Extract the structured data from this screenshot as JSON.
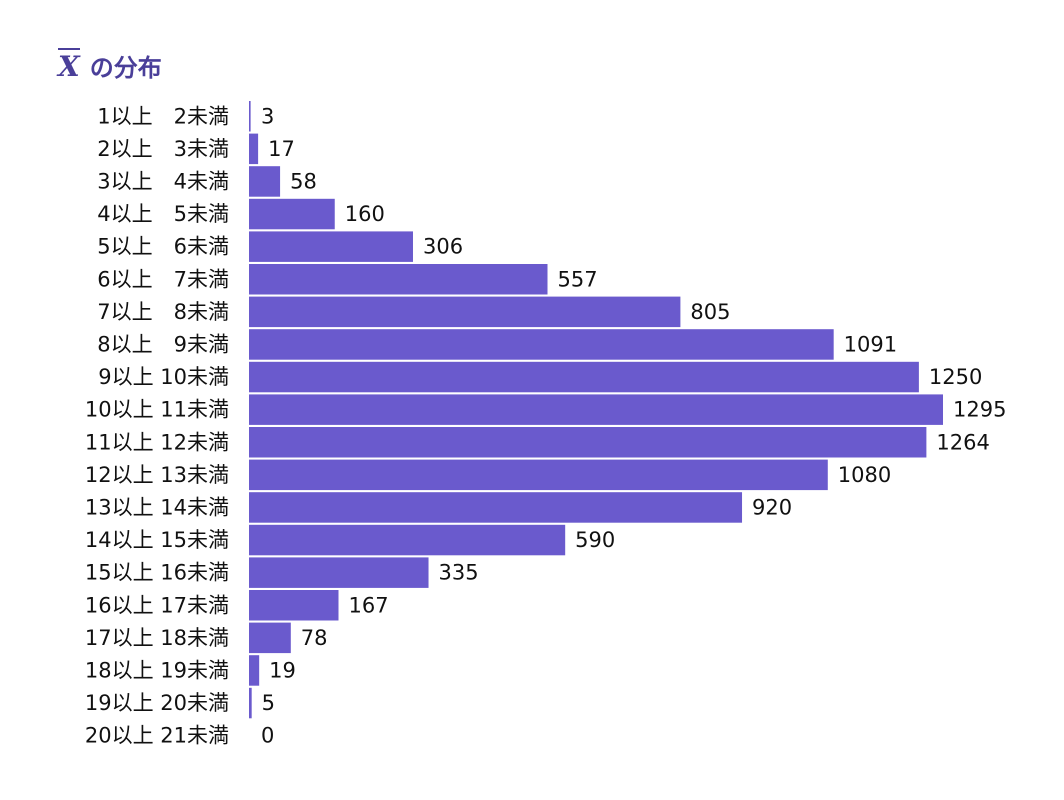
{
  "chart_data": {
    "type": "bar",
    "orientation": "horizontal",
    "title_symbol": "X",
    "title_text": "の分布",
    "bar_color": "#6a5acd",
    "title_color": "#4a3f99",
    "categories": [
      "1以上　2未満",
      "2以上　3未満",
      "3以上　4未満",
      "4以上　5未満",
      "5以上　6未満",
      "6以上　7未満",
      "7以上　8未満",
      "8以上　9未満",
      "9以上 10未満",
      "10以上 11未満",
      "11以上 12未満",
      "12以上 13未満",
      "13以上 14未満",
      "14以上 15未満",
      "15以上 16未満",
      "16以上 17未満",
      "17以上 18未満",
      "18以上 19未満",
      "19以上 20未満",
      "20以上 21未満"
    ],
    "values": [
      3,
      17,
      58,
      160,
      306,
      557,
      805,
      1091,
      1250,
      1295,
      1264,
      1080,
      920,
      590,
      335,
      167,
      78,
      19,
      5,
      0
    ],
    "xlim": [
      0,
      1295
    ]
  }
}
